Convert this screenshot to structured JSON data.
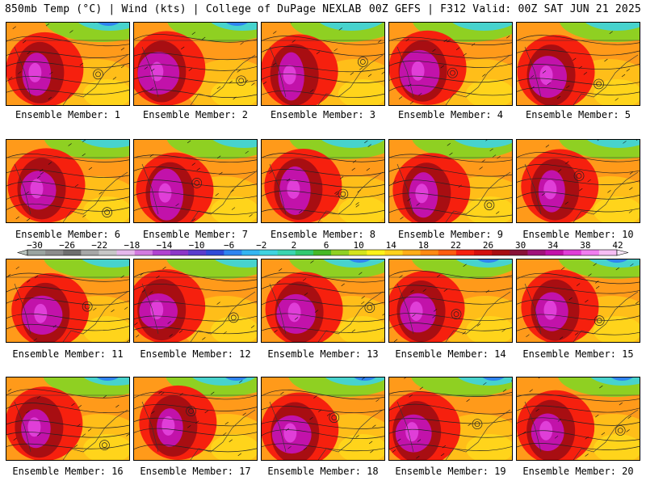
{
  "header": {
    "left": "850mb Temp (°C) | Wind (kts) | College of DuPage NEXLAB",
    "right": "00Z GEFS | F312 Valid: 00Z SAT JUN 21 2025"
  },
  "panel_label_prefix": "Ensemble Member: ",
  "members": [
    1,
    2,
    3,
    4,
    5,
    6,
    7,
    8,
    9,
    10,
    11,
    12,
    13,
    14,
    15,
    16,
    17,
    18,
    19,
    20
  ],
  "colorbar": {
    "tick_labels": [
      "-30",
      "-26",
      "-22",
      "-18",
      "-14",
      "-10",
      "-6",
      "-2",
      "2",
      "6",
      "10",
      "14",
      "18",
      "22",
      "26",
      "30",
      "34",
      "38",
      "42"
    ],
    "colors": [
      "#9aa4a0",
      "#8c8c8c",
      "#6e6e6e",
      "#a7a7a7",
      "#c7c7c7",
      "#e6b8ec",
      "#d37ae0",
      "#b042d0",
      "#8c36c8",
      "#5a3ccd",
      "#2f4ad8",
      "#2f84f0",
      "#34b5f2",
      "#3fd3e0",
      "#3ad5b0",
      "#31c970",
      "#45b826",
      "#8fd022",
      "#d4e41c",
      "#fff21a",
      "#ffd21c",
      "#ffad18",
      "#ff8a12",
      "#ff5c0e",
      "#f6200e",
      "#d4100e",
      "#a80e12",
      "#881238",
      "#a0127a",
      "#c212aa",
      "#e03ed8",
      "#f07ef0",
      "#f6bdf4"
    ]
  }
}
